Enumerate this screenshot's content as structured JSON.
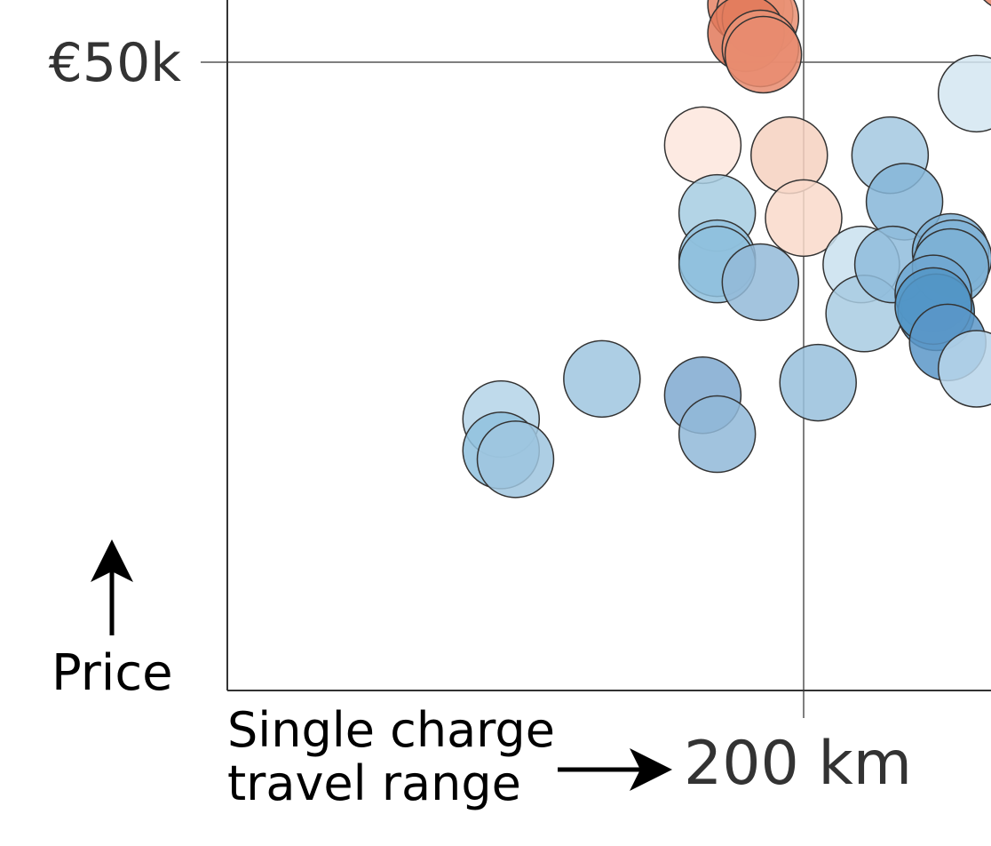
{
  "chart_data": {
    "type": "scatter",
    "xlabel": "Single charge travel range",
    "ylabel": "Price",
    "x_ticks": [
      {
        "value": 200,
        "label": "200 km"
      }
    ],
    "y_ticks": [
      {
        "value": 50,
        "label": "€50k"
      }
    ],
    "xlim": [
      0,
      265
    ],
    "ylim": [
      0,
      55
    ],
    "grid": "at labelled ticks only",
    "points": [
      {
        "x": 180,
        "y": 54.6,
        "color": "#e58466"
      },
      {
        "x": 183,
        "y": 53.9,
        "color": "#eb9a80"
      },
      {
        "x": 185,
        "y": 53.5,
        "color": "#e98f72"
      },
      {
        "x": 180,
        "y": 52.3,
        "color": "#e2795b"
      },
      {
        "x": 185,
        "y": 51.1,
        "color": "#ea9276"
      },
      {
        "x": 186,
        "y": 50.6,
        "color": "#e88b6e"
      },
      {
        "x": 272,
        "y": 57.1,
        "color": "#e58466"
      },
      {
        "x": 260,
        "y": 47.5,
        "color": "#d3e6f1"
      },
      {
        "x": 165,
        "y": 43.4,
        "color": "#fde6dd"
      },
      {
        "x": 195,
        "y": 42.6,
        "color": "#f6d1c0"
      },
      {
        "x": 200,
        "y": 37.6,
        "color": "#f9d9ca"
      },
      {
        "x": 230,
        "y": 42.6,
        "color": "#a3c8e0"
      },
      {
        "x": 235,
        "y": 38.9,
        "color": "#86b6d8"
      },
      {
        "x": 170,
        "y": 38.0,
        "color": "#a6cce2"
      },
      {
        "x": 170,
        "y": 34.4,
        "color": "#93c2de"
      },
      {
        "x": 170,
        "y": 33.9,
        "color": "#8ebfdd"
      },
      {
        "x": 185,
        "y": 32.5,
        "color": "#93bad8"
      },
      {
        "x": 220,
        "y": 33.9,
        "color": "#c9e0ee"
      },
      {
        "x": 221,
        "y": 30.0,
        "color": "#a8cbe2"
      },
      {
        "x": 231,
        "y": 33.9,
        "color": "#8fbcdc"
      },
      {
        "x": 251,
        "y": 34.9,
        "color": "#7cb0d5"
      },
      {
        "x": 252,
        "y": 34.4,
        "color": "#80b3d7"
      },
      {
        "x": 251,
        "y": 33.7,
        "color": "#7cb0d5"
      },
      {
        "x": 245,
        "y": 31.6,
        "color": "#6fa7d1"
      },
      {
        "x": 246,
        "y": 30.1,
        "color": "#4a8fc2"
      },
      {
        "x": 245,
        "y": 30.6,
        "color": "#5496c7"
      },
      {
        "x": 250,
        "y": 27.7,
        "color": "#5a97c8"
      },
      {
        "x": 260,
        "y": 25.6,
        "color": "#b7d5ea"
      },
      {
        "x": 95,
        "y": 21.6,
        "color": "#b4d3e7"
      },
      {
        "x": 95,
        "y": 19.1,
        "color": "#8fc1de"
      },
      {
        "x": 100,
        "y": 18.4,
        "color": "#9fc6df"
      },
      {
        "x": 130,
        "y": 24.8,
        "color": "#9fc6df"
      },
      {
        "x": 165,
        "y": 23.5,
        "color": "#7fa9d0"
      },
      {
        "x": 170,
        "y": 20.4,
        "color": "#90b8d8"
      },
      {
        "x": 205,
        "y": 24.5,
        "color": "#98c0dc"
      }
    ]
  }
}
